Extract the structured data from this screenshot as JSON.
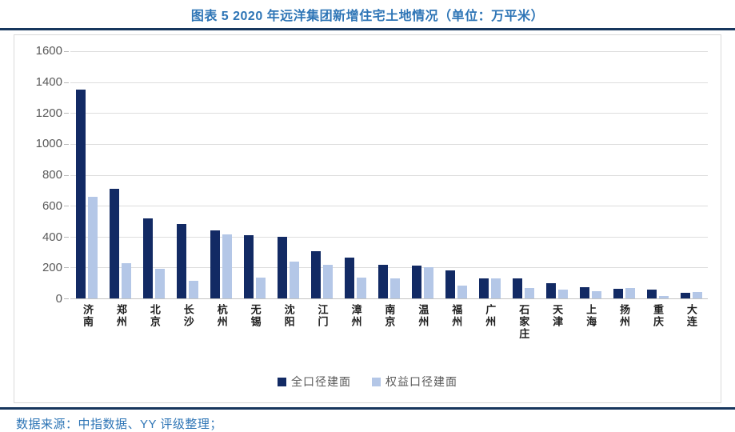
{
  "title": "图表 5 2020 年远洋集团新增住宅土地情况（单位：万平米）",
  "footer": {
    "source": "数据来源：中指数据、YY 评级整理；"
  },
  "colors": {
    "title_blue": "#2e75b6",
    "rule_navy": "#17365d",
    "series_dark_navy": "#122a64",
    "series_light_blue": "#b4c7e7",
    "axis_text_gray": "#595959",
    "gridline_gray": "#dddddd"
  },
  "chart_data": {
    "type": "bar",
    "title": "2020 年远洋集团新增住宅土地情况",
    "unit": "万平米",
    "categories": [
      "济南",
      "郑州",
      "北京",
      "长沙",
      "杭州",
      "无锡",
      "沈阳",
      "江门",
      "漳州",
      "南京",
      "温州",
      "福州",
      "广州",
      "石家庄",
      "天津",
      "上海",
      "扬州",
      "重庆",
      "大连"
    ],
    "series": [
      {
        "name": "全口径建面",
        "color": "#122a64",
        "values": [
          1350,
          710,
          520,
          480,
          440,
          410,
          400,
          305,
          265,
          215,
          210,
          180,
          130,
          130,
          100,
          75,
          60,
          55,
          35
        ]
      },
      {
        "name": "权益口径建面",
        "color": "#b4c7e7",
        "values": [
          660,
          230,
          190,
          115,
          415,
          135,
          240,
          220,
          135,
          130,
          200,
          85,
          130,
          65,
          55,
          45,
          65,
          15,
          40
        ]
      }
    ],
    "ylim": [
      0,
      1600
    ],
    "yticks": [
      0,
      200,
      400,
      600,
      800,
      1000,
      1200,
      1400,
      1600
    ],
    "grid": true,
    "legend_position": "bottom"
  }
}
